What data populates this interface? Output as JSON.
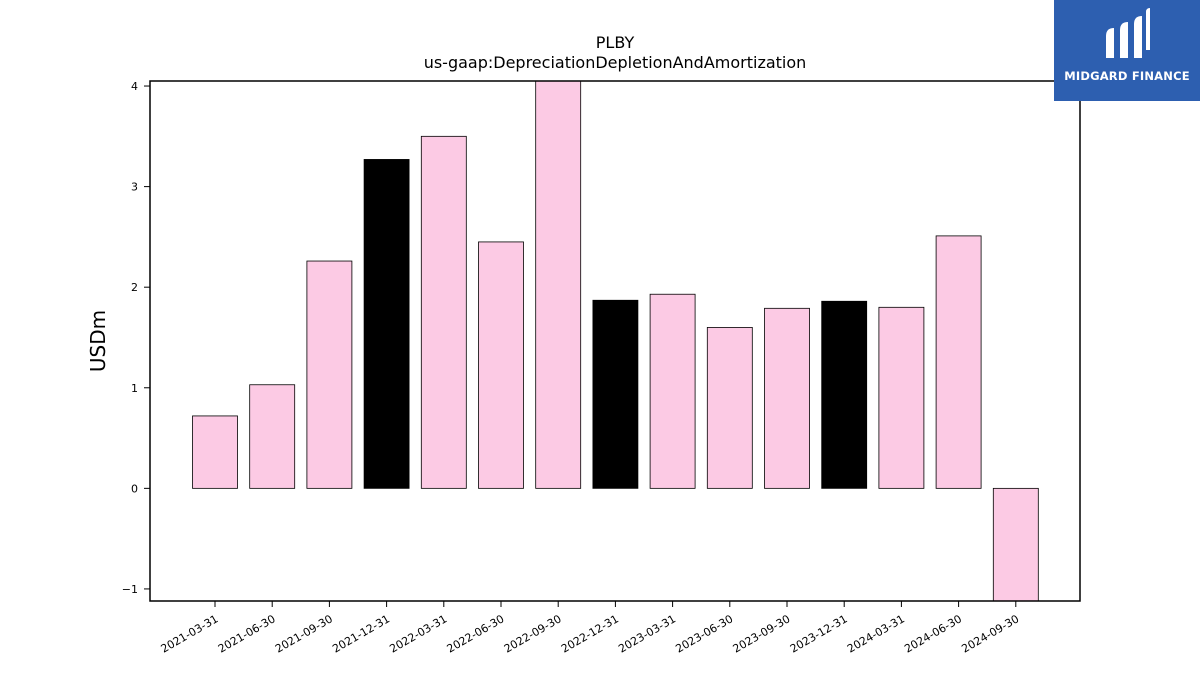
{
  "brand": {
    "name": "MIDGARD FINANCE",
    "icon": "midgard-logo-icon",
    "background": "#2d5fb0"
  },
  "chart_data": {
    "type": "bar",
    "title": "PLBY",
    "subtitle": "us-gaap:DepreciationDepletionAndAmortization",
    "xlabel": "",
    "ylabel": "USDm",
    "ylim": [
      -1.12,
      4.05
    ],
    "yticks": [
      -1,
      0,
      1,
      2,
      3,
      4
    ],
    "ytick_labels": [
      "−1",
      "0",
      "1",
      "2",
      "3",
      "4"
    ],
    "grid": false,
    "categories": [
      "2021-03-31",
      "2021-06-30",
      "2021-09-30",
      "2021-12-31",
      "2022-03-31",
      "2022-06-30",
      "2022-09-30",
      "2022-12-31",
      "2023-03-31",
      "2023-06-30",
      "2023-09-30",
      "2023-12-31",
      "2024-03-31",
      "2024-06-30",
      "2024-09-30"
    ],
    "values": [
      0.72,
      1.03,
      2.26,
      3.27,
      3.5,
      2.45,
      4.1,
      1.87,
      1.93,
      1.6,
      1.79,
      1.86,
      1.8,
      2.51,
      -1.15
    ],
    "bar_colors": [
      "#fccae4",
      "#fccae4",
      "#fccae4",
      "#000000",
      "#fccae4",
      "#fccae4",
      "#fccae4",
      "#000000",
      "#fccae4",
      "#fccae4",
      "#fccae4",
      "#000000",
      "#fccae4",
      "#fccae4",
      "#fccae4"
    ],
    "colors": {
      "quarter": "#fccae4",
      "year_end": "#000000",
      "edge": "#000000"
    }
  }
}
